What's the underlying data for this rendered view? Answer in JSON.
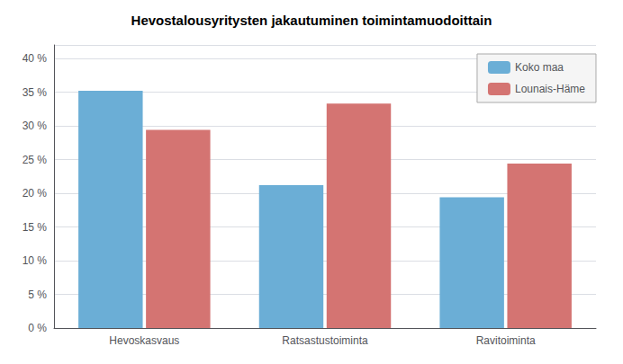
{
  "chart_data": {
    "type": "bar",
    "title": "Hevostalousyritysten jakautuminen toimintamuodoittain",
    "categories": [
      "Hevoskasvaus",
      "Ratsastustoiminta",
      "Ravitoiminta"
    ],
    "series": [
      {
        "name": "Koko maa",
        "color": "#6baed6",
        "values": [
          35.2,
          21.2,
          19.4
        ]
      },
      {
        "name": "Lounais-Häme",
        "color": "#d47472",
        "values": [
          29.4,
          33.3,
          24.4
        ]
      }
    ],
    "ylim": [
      0,
      42
    ],
    "yticks": [
      {
        "value": 0,
        "label": "0 %"
      },
      {
        "value": 5,
        "label": "5 %"
      },
      {
        "value": 10,
        "label": "10 %"
      },
      {
        "value": 15,
        "label": "15 %"
      },
      {
        "value": 20,
        "label": "20 %"
      },
      {
        "value": 25,
        "label": "25 %"
      },
      {
        "value": 30,
        "label": "30 %"
      },
      {
        "value": 35,
        "label": "35 %"
      },
      {
        "value": 40,
        "label": "40 %"
      }
    ],
    "grid": true,
    "legend": "upper right"
  }
}
